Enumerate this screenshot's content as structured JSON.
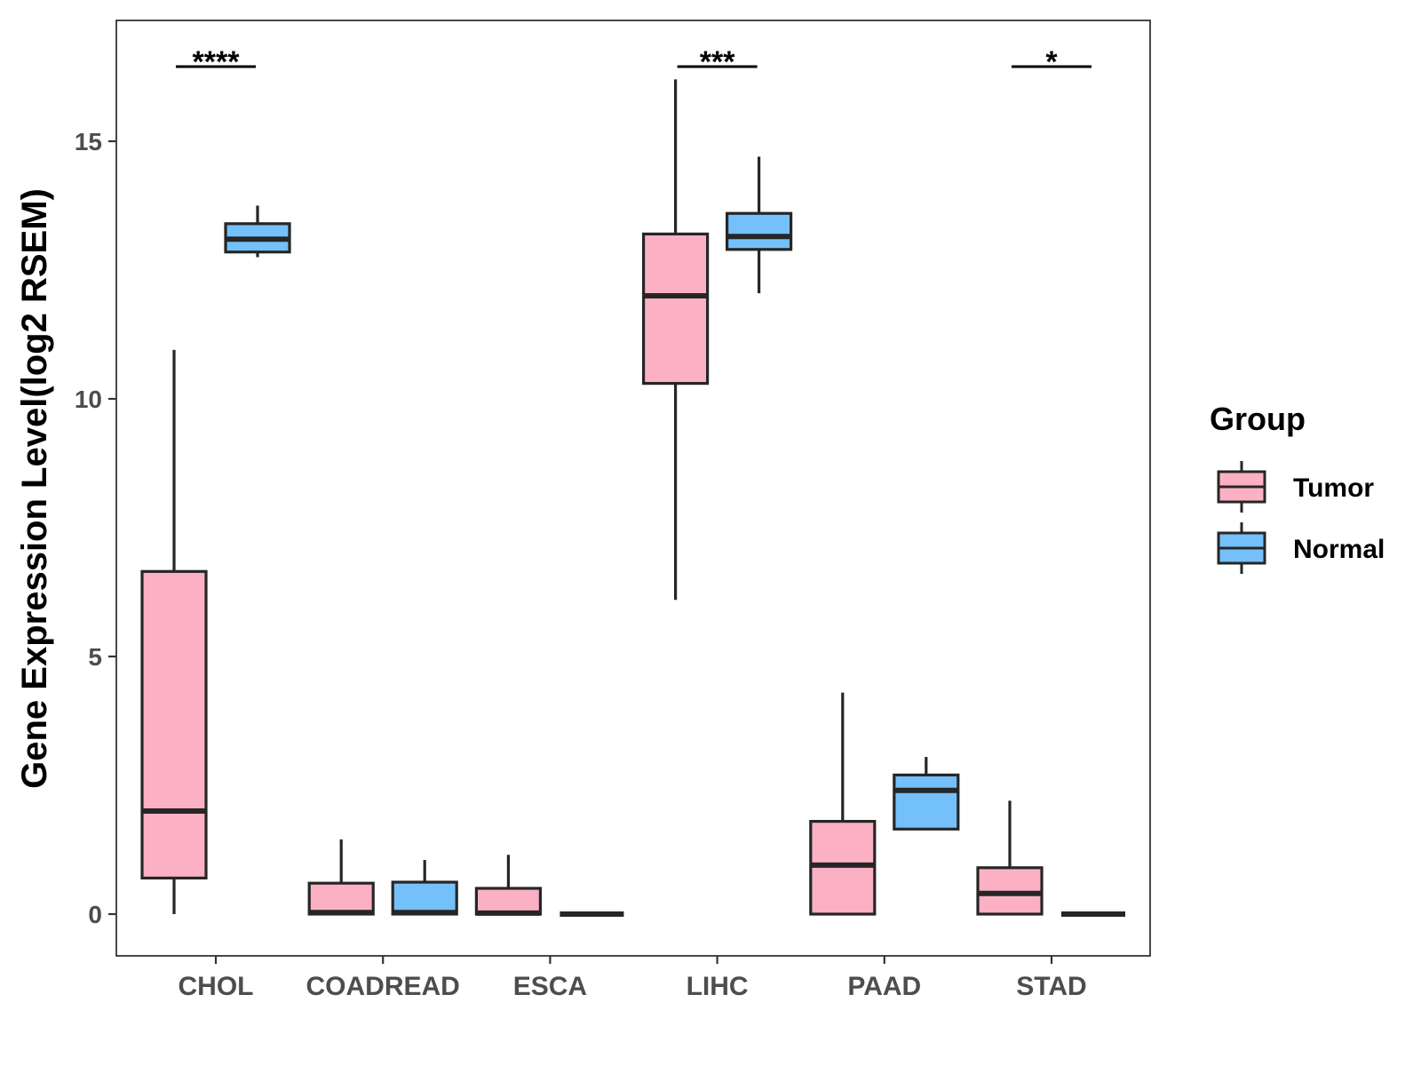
{
  "chart_data": {
    "type": "boxplot",
    "title": "",
    "xlabel": "",
    "ylabel": "Gene Expression Level(log2 RSEM)",
    "ylim": [
      -0.8,
      17.4
    ],
    "yticks": [
      0,
      5,
      10,
      15
    ],
    "categories": [
      "CHOL",
      "COADREAD",
      "ESCA",
      "LIHC",
      "PAAD",
      "STAD"
    ],
    "legend": {
      "title": "Group",
      "position": "right",
      "entries": [
        {
          "name": "Tumor",
          "color": "#fbb1c3"
        },
        {
          "name": "Normal",
          "color": "#74c0fa"
        }
      ]
    },
    "series": [
      {
        "name": "Tumor",
        "color": "#fbb1c3",
        "boxes": [
          {
            "category": "CHOL",
            "min": 0.0,
            "q1": 0.7,
            "median": 2.0,
            "q3": 6.65,
            "max": 10.95
          },
          {
            "category": "COADREAD",
            "min": 0.0,
            "q1": 0.0,
            "median": 0.03,
            "q3": 0.6,
            "max": 1.45
          },
          {
            "category": "ESCA",
            "min": 0.0,
            "q1": 0.0,
            "median": 0.02,
            "q3": 0.5,
            "max": 1.15
          },
          {
            "category": "LIHC",
            "min": 6.1,
            "q1": 10.3,
            "median": 12.0,
            "q3": 13.2,
            "max": 16.2
          },
          {
            "category": "PAAD",
            "min": 0.0,
            "q1": 0.0,
            "median": 0.95,
            "q3": 1.8,
            "max": 4.3
          },
          {
            "category": "STAD",
            "min": 0.0,
            "q1": 0.0,
            "median": 0.4,
            "q3": 0.9,
            "max": 2.2
          }
        ]
      },
      {
        "name": "Normal",
        "color": "#74c0fa",
        "boxes": [
          {
            "category": "CHOL",
            "min": 12.75,
            "q1": 12.85,
            "median": 13.1,
            "q3": 13.4,
            "max": 13.75
          },
          {
            "category": "COADREAD",
            "min": 0.0,
            "q1": 0.0,
            "median": 0.03,
            "q3": 0.62,
            "max": 1.05
          },
          {
            "category": "ESCA",
            "min": 0.0,
            "q1": 0.0,
            "median": 0.0,
            "q3": 0.0,
            "max": 0.0
          },
          {
            "category": "LIHC",
            "min": 12.05,
            "q1": 12.9,
            "median": 13.15,
            "q3": 13.6,
            "max": 14.7
          },
          {
            "category": "PAAD",
            "min": 1.65,
            "q1": 1.65,
            "median": 2.4,
            "q3": 2.7,
            "max": 3.05
          },
          {
            "category": "STAD",
            "min": 0.0,
            "q1": 0.0,
            "median": 0.0,
            "q3": 0.0,
            "max": 0.0
          }
        ]
      }
    ],
    "significance": [
      {
        "category": "CHOL",
        "label": "****"
      },
      {
        "category": "LIHC",
        "label": "***"
      },
      {
        "category": "STAD",
        "label": "*"
      }
    ],
    "styling": {
      "outline_color": "#262626",
      "panel_border_color": "#1a1a1a"
    }
  }
}
